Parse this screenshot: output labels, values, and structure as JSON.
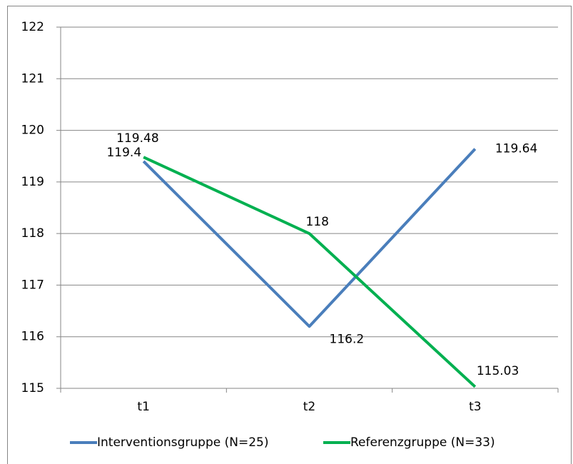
{
  "chart_data": {
    "type": "line",
    "categories": [
      "t1",
      "t2",
      "t3"
    ],
    "series": [
      {
        "name": "Interventionsgruppe (N=25)",
        "color": "#4a7ebb",
        "values": [
          119.4,
          116.2,
          119.64
        ]
      },
      {
        "name": "Referenzgruppe (N=33)",
        "color": "#00b050",
        "values": [
          119.48,
          118,
          115.03
        ]
      }
    ],
    "ylim": [
      115,
      122
    ],
    "yticks": [
      115,
      116,
      117,
      118,
      119,
      120,
      121,
      122
    ],
    "grid": true,
    "legend": "bottom",
    "data_labels": true
  }
}
